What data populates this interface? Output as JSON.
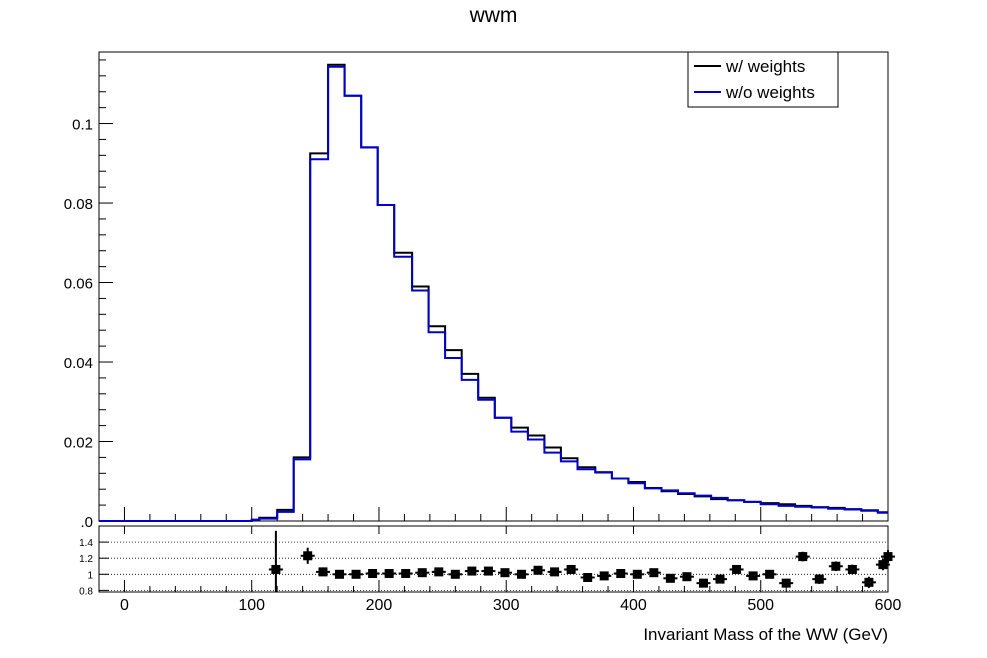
{
  "chart_data": {
    "type": "histogram",
    "title": "wwm",
    "xlabel": "Invariant Mass of the WW (GeV)",
    "xlim": [
      -20,
      600
    ],
    "bin_edges": [
      -20,
      0,
      20,
      40,
      60,
      80,
      100,
      106,
      120,
      133,
      146,
      160,
      173,
      186,
      199,
      212,
      226,
      239,
      252,
      265,
      278,
      291,
      304,
      317,
      330,
      343,
      356,
      370,
      383,
      396,
      409,
      422,
      435,
      448,
      461,
      474,
      487,
      500,
      514,
      527,
      540,
      553,
      566,
      579,
      592,
      600
    ],
    "main": {
      "ylim": [
        0,
        0.118
      ],
      "yticks": [
        0,
        0.02,
        0.04,
        0.06,
        0.08,
        0.1
      ],
      "ytick_labels": [
        ".0",
        "0.02",
        "0.04",
        "0.06",
        "0.08",
        "0.1"
      ],
      "legend_position": "top-right",
      "series": [
        {
          "name": "w/ weights",
          "color": "#000000",
          "values": [
            0,
            0,
            0,
            0,
            0,
            0,
            0.0003,
            0.0008,
            0.0028,
            0.016,
            0.0925,
            0.1148,
            0.107,
            0.094,
            0.0795,
            0.0675,
            0.059,
            0.049,
            0.043,
            0.037,
            0.031,
            0.026,
            0.0235,
            0.0215,
            0.0185,
            0.0158,
            0.0135,
            0.0122,
            0.0107,
            0.0098,
            0.0083,
            0.0075,
            0.0068,
            0.0062,
            0.0055,
            0.0052,
            0.0048,
            0.0045,
            0.0042,
            0.0038,
            0.0035,
            0.0033,
            0.003,
            0.0027,
            0.0022
          ]
        },
        {
          "name": "w/o weights",
          "color": "#0000cc",
          "values": [
            0,
            0,
            0,
            0,
            0,
            0,
            0.0003,
            0.0006,
            0.0023,
            0.0155,
            0.091,
            0.1143,
            0.107,
            0.094,
            0.0795,
            0.0665,
            0.058,
            0.0475,
            0.041,
            0.0355,
            0.0305,
            0.026,
            0.0225,
            0.0205,
            0.0172,
            0.015,
            0.013,
            0.0123,
            0.0107,
            0.0095,
            0.0082,
            0.0077,
            0.007,
            0.0064,
            0.0058,
            0.0052,
            0.0048,
            0.0042,
            0.0038,
            0.0036,
            0.0034,
            0.0031,
            0.0029,
            0.0026,
            0.0021
          ]
        }
      ]
    },
    "ratio": {
      "ylim": [
        0.78,
        1.6
      ],
      "yticks": [
        0.8,
        1,
        1.2,
        1.4
      ],
      "ytick_labels": [
        "0.8",
        "1",
        "1.2",
        "1.4"
      ],
      "grid": "dotted",
      "points": [
        {
          "x": 119,
          "y": 1.06,
          "err": 0.48
        },
        {
          "x": 144,
          "y": 1.23,
          "err": 0.1
        },
        {
          "x": 156,
          "y": 1.03,
          "err": 0.02
        },
        {
          "x": 169,
          "y": 1.0,
          "err": 0.015
        },
        {
          "x": 182,
          "y": 1.0,
          "err": 0.015
        },
        {
          "x": 195,
          "y": 1.01,
          "err": 0.015
        },
        {
          "x": 208,
          "y": 1.01,
          "err": 0.015
        },
        {
          "x": 221,
          "y": 1.01,
          "err": 0.015
        },
        {
          "x": 234,
          "y": 1.02,
          "err": 0.02
        },
        {
          "x": 247,
          "y": 1.03,
          "err": 0.02
        },
        {
          "x": 260,
          "y": 1.0,
          "err": 0.02
        },
        {
          "x": 273,
          "y": 1.04,
          "err": 0.02
        },
        {
          "x": 286,
          "y": 1.04,
          "err": 0.02
        },
        {
          "x": 299,
          "y": 1.02,
          "err": 0.02
        },
        {
          "x": 312,
          "y": 1.0,
          "err": 0.02
        },
        {
          "x": 325,
          "y": 1.05,
          "err": 0.025
        },
        {
          "x": 338,
          "y": 1.03,
          "err": 0.025
        },
        {
          "x": 351,
          "y": 1.06,
          "err": 0.025
        },
        {
          "x": 364,
          "y": 0.96,
          "err": 0.025
        },
        {
          "x": 377,
          "y": 0.98,
          "err": 0.025
        },
        {
          "x": 390,
          "y": 1.01,
          "err": 0.025
        },
        {
          "x": 403,
          "y": 1.0,
          "err": 0.03
        },
        {
          "x": 416,
          "y": 1.02,
          "err": 0.03
        },
        {
          "x": 429,
          "y": 0.95,
          "err": 0.03
        },
        {
          "x": 442,
          "y": 0.97,
          "err": 0.03
        },
        {
          "x": 455,
          "y": 0.89,
          "err": 0.04
        },
        {
          "x": 468,
          "y": 0.94,
          "err": 0.04
        },
        {
          "x": 481,
          "y": 1.06,
          "err": 0.05
        },
        {
          "x": 494,
          "y": 0.98,
          "err": 0.05
        },
        {
          "x": 507,
          "y": 1.0,
          "err": 0.05
        },
        {
          "x": 520,
          "y": 0.89,
          "err": 0.05
        },
        {
          "x": 533,
          "y": 1.22,
          "err": 0.06
        },
        {
          "x": 546,
          "y": 0.94,
          "err": 0.06
        },
        {
          "x": 559,
          "y": 1.1,
          "err": 0.06
        },
        {
          "x": 572,
          "y": 1.06,
          "err": 0.06
        },
        {
          "x": 585,
          "y": 0.9,
          "err": 0.07
        },
        {
          "x": 596,
          "y": 1.12,
          "err": 0.07
        },
        {
          "x": 600,
          "y": 1.22,
          "err": 0.08
        }
      ]
    },
    "xticks": [
      0,
      100,
      200,
      300,
      400,
      500,
      600
    ],
    "xtick_labels": [
      "0",
      "100",
      "200",
      "300",
      "400",
      "500",
      "600"
    ]
  }
}
